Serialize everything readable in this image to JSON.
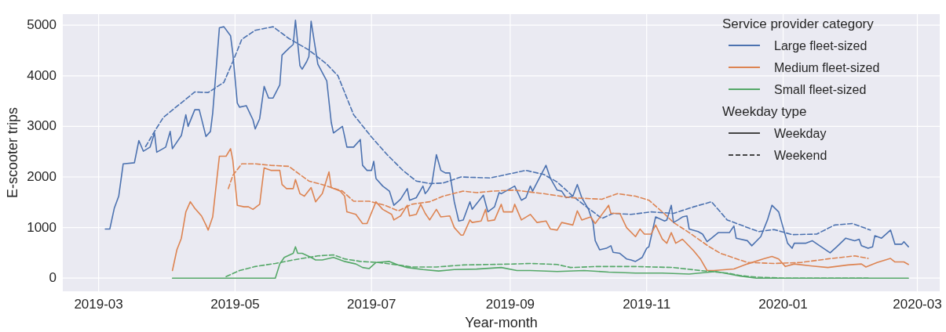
{
  "chart_data": {
    "type": "line",
    "xlabel": "Year-month",
    "ylabel": "E-scooter trips",
    "legend_title": "Service provider category",
    "legend": "top right",
    "grid": true,
    "xlim": [
      "2019-02-13",
      "2020-03-11"
    ],
    "xticks": [
      "2019-03",
      "2019-05",
      "2019-07",
      "2019-09",
      "2019-11",
      "2020-01",
      "2020-03"
    ],
    "ylim": [
      -260,
      5220
    ],
    "yticks": [
      0,
      1000,
      2000,
      3000,
      4000,
      5000
    ],
    "annotations": [
      "Weekday type",
      "Weekday",
      "Weekend"
    ],
    "series": [
      {
        "name": "Large fleet-sized",
        "color": "#4c72b0",
        "line_style": "solid",
        "x": [
          "2019-03-04",
          "2019-03-06",
          "2019-03-08",
          "2019-03-10",
          "2019-03-12",
          "2019-03-17",
          "2019-03-19",
          "2019-03-21",
          "2019-03-24",
          "2019-03-26",
          "2019-03-27",
          "2019-03-31",
          "2019-04-02",
          "2019-04-03",
          "2019-04-07",
          "2019-04-09",
          "2019-04-10",
          "2019-04-13",
          "2019-04-15",
          "2019-04-18",
          "2019-04-20",
          "2019-04-21",
          "2019-04-24",
          "2019-04-26",
          "2019-04-29",
          "2019-04-30",
          "2019-05-02",
          "2019-05-03",
          "2019-05-06",
          "2019-05-09",
          "2019-05-10",
          "2019-05-12",
          "2019-05-14",
          "2019-05-16",
          "2019-05-18",
          "2019-05-21",
          "2019-05-22",
          "2019-05-25",
          "2019-05-27",
          "2019-05-28",
          "2019-05-30",
          "2019-05-31",
          "2019-06-02",
          "2019-06-03",
          "2019-06-04",
          "2019-06-07",
          "2019-06-11",
          "2019-06-13",
          "2019-06-14",
          "2019-06-18",
          "2019-06-20",
          "2019-06-23",
          "2019-06-26",
          "2019-06-27",
          "2019-06-29",
          "2019-07-01",
          "2019-07-02",
          "2019-07-03",
          "2019-07-06",
          "2019-07-09",
          "2019-07-11",
          "2019-07-14",
          "2019-07-17",
          "2019-07-18",
          "2019-07-21",
          "2019-07-24",
          "2019-07-25",
          "2019-07-26",
          "2019-07-28",
          "2019-07-30",
          "2019-08-01",
          "2019-08-03",
          "2019-08-05",
          "2019-08-07",
          "2019-08-09",
          "2019-08-11",
          "2019-08-14",
          "2019-08-15",
          "2019-08-20",
          "2019-08-22",
          "2019-08-25",
          "2019-08-27",
          "2019-08-28",
          "2019-09-03",
          "2019-09-06",
          "2019-09-08",
          "2019-09-10",
          "2019-09-11",
          "2019-09-17",
          "2019-09-19",
          "2019-09-22",
          "2019-09-24",
          "2019-09-26",
          "2019-09-29",
          "2019-10-01",
          "2019-10-03",
          "2019-10-06",
          "2019-10-08",
          "2019-10-09",
          "2019-10-11",
          "2019-10-14",
          "2019-10-16",
          "2019-10-17",
          "2019-10-20",
          "2019-10-23",
          "2019-10-25",
          "2019-10-27",
          "2019-10-30",
          "2019-11-01",
          "2019-11-02",
          "2019-11-05",
          "2019-11-09",
          "2019-11-10",
          "2019-11-12",
          "2019-11-13",
          "2019-11-15",
          "2019-11-17",
          "2019-11-19",
          "2019-11-20",
          "2019-11-24",
          "2019-11-26",
          "2019-11-28",
          "2019-11-30",
          "2019-12-03",
          "2019-12-08",
          "2019-12-10",
          "2019-12-11",
          "2019-12-16",
          "2019-12-18",
          "2019-12-22",
          "2019-12-25",
          "2019-12-27",
          "2019-12-30",
          "2020-01-01",
          "2020-01-03",
          "2020-01-05",
          "2020-01-06",
          "2020-01-11",
          "2020-01-14",
          "2020-01-18",
          "2020-01-22",
          "2020-01-25",
          "2020-01-29",
          "2020-02-02",
          "2020-02-04",
          "2020-02-05",
          "2020-02-08",
          "2020-02-10",
          "2020-02-11",
          "2020-02-14",
          "2020-02-18",
          "2020-02-20",
          "2020-02-23",
          "2020-02-24",
          "2020-02-26"
        ],
        "values": [
          970,
          970,
          1380,
          1620,
          2260,
          2280,
          2720,
          2510,
          2590,
          2870,
          2490,
          2590,
          2900,
          2560,
          2820,
          3230,
          3000,
          3330,
          3330,
          2800,
          2900,
          3260,
          4950,
          4970,
          4790,
          4440,
          3460,
          3380,
          3410,
          3130,
          2950,
          3150,
          3790,
          3560,
          3560,
          3820,
          4410,
          4540,
          4620,
          5100,
          4200,
          4130,
          4280,
          4380,
          5080,
          4230,
          3900,
          3080,
          2870,
          3000,
          2590,
          2590,
          2740,
          2230,
          2130,
          2130,
          2310,
          1970,
          1820,
          1720,
          1440,
          1560,
          1770,
          1540,
          1590,
          1820,
          1670,
          1720,
          1870,
          2440,
          2130,
          2080,
          2080,
          1510,
          1130,
          1150,
          1510,
          1360,
          1640,
          1310,
          1410,
          1690,
          1670,
          1820,
          1540,
          1590,
          1820,
          1720,
          2230,
          1970,
          1740,
          1720,
          1590,
          1620,
          1850,
          1590,
          1360,
          1100,
          740,
          560,
          590,
          640,
          510,
          490,
          380,
          360,
          330,
          410,
          590,
          620,
          1210,
          1130,
          1150,
          1440,
          1100,
          1150,
          1210,
          1230,
          970,
          920,
          870,
          720,
          790,
          900,
          900,
          1030,
          790,
          740,
          640,
          820,
          1150,
          1440,
          1310,
          1000,
          690,
          590,
          690,
          690,
          740,
          620,
          500,
          620,
          790,
          740,
          770,
          640,
          590,
          620,
          840,
          790,
          950,
          670,
          670,
          720,
          620
        ]
      },
      {
        "color": "#4c72b0",
        "line_style": "dashed",
        "x": [
          "2019-03-22",
          "2019-03-26",
          "2019-03-30",
          "2019-04-04",
          "2019-04-13",
          "2019-04-19",
          "2019-04-26",
          "2019-04-30",
          "2019-05-04",
          "2019-05-10",
          "2019-05-18",
          "2019-05-25",
          "2019-06-03",
          "2019-06-11",
          "2019-06-16",
          "2019-06-23",
          "2019-07-01",
          "2019-07-08",
          "2019-07-15",
          "2019-07-21",
          "2019-07-27",
          "2019-08-02",
          "2019-08-10",
          "2019-08-23",
          "2019-09-08",
          "2019-09-16",
          "2019-09-22",
          "2019-09-29",
          "2019-10-06",
          "2019-10-12",
          "2019-10-17",
          "2019-10-25",
          "2019-11-03",
          "2019-11-13",
          "2019-11-22",
          "2019-11-30",
          "2019-12-07",
          "2019-12-21",
          "2019-12-28",
          "2020-01-05",
          "2020-01-16",
          "2020-01-24",
          "2020-02-01",
          "2020-02-09"
        ],
        "values": [
          2600,
          2900,
          3180,
          3360,
          3680,
          3670,
          3870,
          4280,
          4720,
          4900,
          4970,
          4740,
          4510,
          4230,
          4000,
          3230,
          2790,
          2440,
          2130,
          1920,
          1870,
          1880,
          2000,
          1980,
          2130,
          2050,
          1900,
          1620,
          1380,
          1180,
          1280,
          1260,
          1310,
          1280,
          1410,
          1510,
          1150,
          920,
          960,
          860,
          870,
          1050,
          1080,
          950
        ]
      },
      {
        "name": "Medium fleet-sized",
        "color": "#dd8452",
        "line_style": "solid",
        "x": [
          "2019-04-03",
          "2019-04-05",
          "2019-04-07",
          "2019-04-09",
          "2019-04-11",
          "2019-04-13",
          "2019-04-16",
          "2019-04-18",
          "2019-04-19",
          "2019-04-21",
          "2019-04-24",
          "2019-04-27",
          "2019-04-29",
          "2019-04-30",
          "2019-05-02",
          "2019-05-05",
          "2019-05-07",
          "2019-05-09",
          "2019-05-12",
          "2019-05-14",
          "2019-05-17",
          "2019-05-19",
          "2019-05-21",
          "2019-05-22",
          "2019-05-24",
          "2019-05-27",
          "2019-05-28",
          "2019-05-30",
          "2019-06-01",
          "2019-06-04",
          "2019-06-06",
          "2019-06-09",
          "2019-06-12",
          "2019-06-13",
          "2019-06-17",
          "2019-06-19",
          "2019-06-20",
          "2019-06-24",
          "2019-06-27",
          "2019-06-29",
          "2019-07-03",
          "2019-07-06",
          "2019-07-10",
          "2019-07-11",
          "2019-07-14",
          "2019-07-17",
          "2019-07-18",
          "2019-07-21",
          "2019-07-23",
          "2019-07-25",
          "2019-07-27",
          "2019-07-30",
          "2019-08-01",
          "2019-08-05",
          "2019-08-07",
          "2019-08-10",
          "2019-08-11",
          "2019-08-14",
          "2019-08-15",
          "2019-08-19",
          "2019-08-21",
          "2019-08-22",
          "2019-08-25",
          "2019-08-28",
          "2019-08-29",
          "2019-09-02",
          "2019-09-03",
          "2019-09-06",
          "2019-09-10",
          "2019-09-13",
          "2019-09-17",
          "2019-09-19",
          "2019-09-22",
          "2019-09-24",
          "2019-09-29",
          "2019-10-01",
          "2019-10-03",
          "2019-10-07",
          "2019-10-09",
          "2019-10-15",
          "2019-10-16",
          "2019-10-20",
          "2019-10-23",
          "2019-10-27",
          "2019-10-29",
          "2019-10-31",
          "2019-11-03",
          "2019-11-05",
          "2019-11-08",
          "2019-11-10",
          "2019-11-12",
          "2019-11-14",
          "2019-11-17",
          "2019-11-22",
          "2019-11-25",
          "2019-11-28",
          "2019-12-01",
          "2019-12-10",
          "2019-12-16",
          "2019-12-23",
          "2019-12-27",
          "2019-12-30",
          "2020-01-02",
          "2020-01-06",
          "2020-01-14",
          "2020-01-21",
          "2020-01-30",
          "2020-02-05",
          "2020-02-07",
          "2020-02-12",
          "2020-02-18",
          "2020-02-20",
          "2020-02-24",
          "2020-02-26"
        ],
        "values": [
          150,
          560,
          790,
          1310,
          1510,
          1380,
          1230,
          1050,
          950,
          1210,
          2410,
          2410,
          2560,
          2330,
          1440,
          1410,
          1410,
          1360,
          1460,
          2180,
          2130,
          2130,
          2130,
          1850,
          1770,
          1770,
          1950,
          1670,
          1620,
          1790,
          1510,
          1670,
          2100,
          1790,
          1720,
          1620,
          1310,
          1260,
          1080,
          1080,
          1510,
          1360,
          1260,
          1150,
          1230,
          1440,
          1230,
          1260,
          1460,
          1280,
          1150,
          1360,
          1210,
          1230,
          1000,
          850,
          850,
          1150,
          1100,
          1130,
          1360,
          1130,
          1150,
          1460,
          1310,
          1310,
          1460,
          1150,
          1260,
          1100,
          1130,
          970,
          950,
          1100,
          1050,
          1330,
          1150,
          1210,
          1080,
          1440,
          1280,
          1280,
          1000,
          820,
          970,
          870,
          870,
          1050,
          770,
          690,
          900,
          690,
          770,
          540,
          380,
          150,
          150,
          180,
          280,
          380,
          430,
          380,
          230,
          280,
          240,
          210,
          260,
          280,
          220,
          310,
          390,
          320,
          320,
          270
        ]
      },
      {
        "color": "#dd8452",
        "line_style": "dashed",
        "x": [
          "2019-04-28",
          "2019-04-30",
          "2019-05-04",
          "2019-05-10",
          "2019-05-17",
          "2019-05-25",
          "2019-06-03",
          "2019-06-09",
          "2019-06-18",
          "2019-06-23",
          "2019-06-30",
          "2019-07-07",
          "2019-07-13",
          "2019-07-19",
          "2019-07-27",
          "2019-08-02",
          "2019-08-11",
          "2019-08-17",
          "2019-08-24",
          "2019-09-03",
          "2019-09-16",
          "2019-09-28",
          "2019-10-12",
          "2019-10-19",
          "2019-10-27",
          "2019-11-02",
          "2019-11-08",
          "2019-11-13",
          "2019-11-20",
          "2019-11-29",
          "2019-12-04",
          "2019-12-16",
          "2019-12-28",
          "2020-01-09",
          "2020-01-21",
          "2020-02-02",
          "2020-02-08"
        ],
        "values": [
          1770,
          2030,
          2260,
          2260,
          2230,
          2210,
          1920,
          1850,
          1720,
          1520,
          1520,
          1440,
          1330,
          1460,
          1510,
          1620,
          1720,
          1690,
          1720,
          1740,
          1670,
          1590,
          1560,
          1670,
          1620,
          1540,
          1310,
          1100,
          900,
          620,
          490,
          310,
          290,
          310,
          380,
          440,
          390
        ]
      },
      {
        "name": "Small fleet-sized",
        "color": "#55a868",
        "line_style": "solid",
        "x": [
          "2019-04-03",
          "2019-05-19",
          "2019-05-21",
          "2019-05-23",
          "2019-05-27",
          "2019-05-28",
          "2019-05-29",
          "2019-05-31",
          "2019-06-04",
          "2019-06-06",
          "2019-06-09",
          "2019-06-14",
          "2019-06-19",
          "2019-06-24",
          "2019-06-27",
          "2019-06-30",
          "2019-07-03",
          "2019-07-09",
          "2019-07-13",
          "2019-07-17",
          "2019-07-24",
          "2019-07-31",
          "2019-08-07",
          "2019-08-17",
          "2019-08-28",
          "2019-09-04",
          "2019-09-10",
          "2019-09-22",
          "2019-10-04",
          "2019-10-15",
          "2019-10-27",
          "2019-11-08",
          "2019-11-20",
          "2019-12-02",
          "2019-12-08",
          "2019-12-13",
          "2019-12-20",
          "2020-02-26"
        ],
        "values": [
          0,
          0,
          280,
          410,
          490,
          620,
          490,
          490,
          410,
          360,
          360,
          410,
          330,
          280,
          210,
          190,
          310,
          330,
          260,
          210,
          170,
          140,
          170,
          180,
          210,
          150,
          150,
          130,
          150,
          120,
          100,
          100,
          80,
          130,
          80,
          40,
          0,
          0
        ]
      },
      {
        "color": "#55a868",
        "line_style": "dashed",
        "x": [
          "2019-04-27",
          "2019-05-03",
          "2019-05-10",
          "2019-05-19",
          "2019-05-27",
          "2019-06-03",
          "2019-06-07",
          "2019-06-14",
          "2019-06-19",
          "2019-06-26",
          "2019-07-04",
          "2019-07-13",
          "2019-07-19",
          "2019-07-30",
          "2019-08-11",
          "2019-08-23",
          "2019-09-03",
          "2019-09-10",
          "2019-09-22",
          "2019-09-28",
          "2019-10-10",
          "2019-10-27",
          "2019-11-13",
          "2019-11-25",
          "2019-12-07",
          "2019-12-13",
          "2019-12-20",
          "2020-01-01",
          "2020-02-08"
        ],
        "values": [
          30,
          150,
          230,
          290,
          360,
          410,
          440,
          460,
          380,
          330,
          310,
          260,
          220,
          220,
          260,
          270,
          280,
          290,
          270,
          210,
          230,
          230,
          210,
          150,
          100,
          50,
          20,
          0,
          0
        ]
      }
    ]
  }
}
